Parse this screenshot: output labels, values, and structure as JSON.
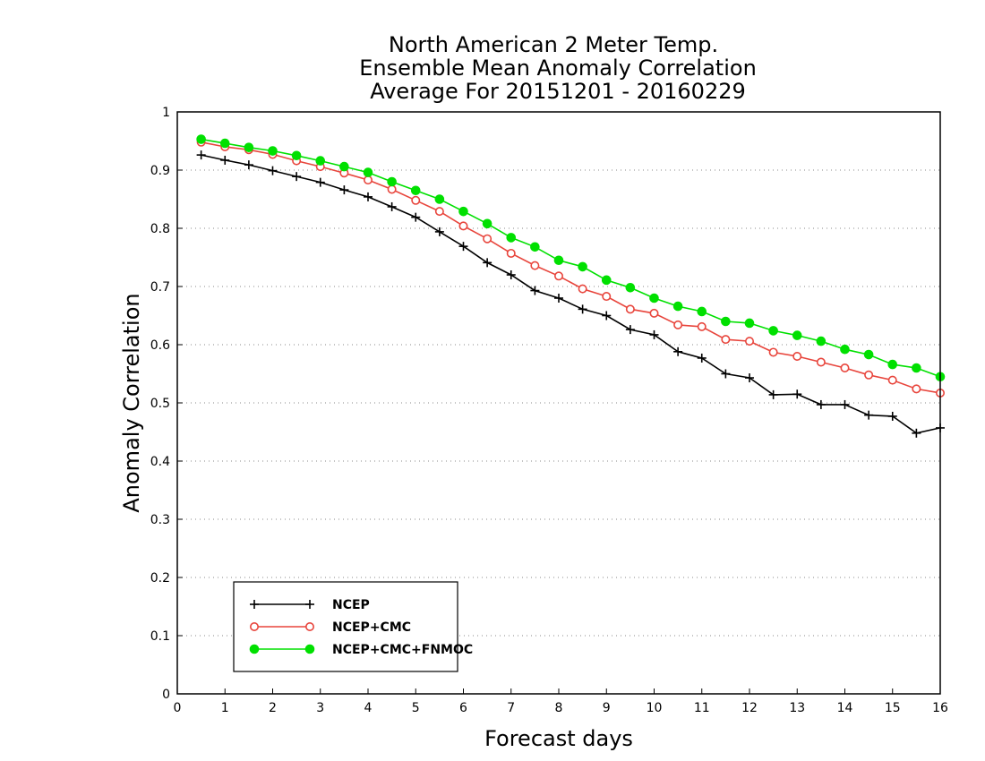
{
  "chart_data": {
    "type": "line",
    "title": [
      "North American 2 Meter Temp.",
      "Ensemble Mean Anomaly Correlation",
      "Average For 20151201 - 20160229"
    ],
    "xlabel": "Forecast days",
    "ylabel": "Anomaly Correlation",
    "xlim": [
      0,
      16
    ],
    "ylim": [
      0,
      1
    ],
    "xticks": [
      0,
      1,
      2,
      3,
      4,
      5,
      6,
      7,
      8,
      9,
      10,
      11,
      12,
      13,
      14,
      15,
      16
    ],
    "yticks": [
      0,
      0.1,
      0.2,
      0.3,
      0.4,
      0.5,
      0.6,
      0.7,
      0.8,
      0.9,
      1
    ],
    "ytick_labels": [
      "0",
      "0.1",
      "0.2",
      "0.3",
      "0.4",
      "0.5",
      "0.6",
      "0.7",
      "0.8",
      "0.9",
      "1"
    ],
    "grid": "horizontal dotted",
    "legend_position": "bottom-left",
    "x": [
      0.5,
      1.0,
      1.5,
      2.0,
      2.5,
      3.0,
      3.5,
      4.0,
      4.5,
      5.0,
      5.5,
      6.0,
      6.5,
      7.0,
      7.5,
      8.0,
      8.5,
      9.0,
      9.5,
      10.0,
      10.5,
      11.0,
      11.5,
      12.0,
      12.5,
      13.0,
      13.5,
      14.0,
      14.5,
      15.0,
      15.5,
      16.0
    ],
    "series": [
      {
        "name": "NCEP",
        "color": "#000000",
        "marker": "plus",
        "values": [
          0.926,
          0.917,
          0.909,
          0.899,
          0.889,
          0.879,
          0.866,
          0.854,
          0.837,
          0.819,
          0.794,
          0.769,
          0.741,
          0.72,
          0.693,
          0.68,
          0.661,
          0.65,
          0.626,
          0.617,
          0.588,
          0.577,
          0.55,
          0.543,
          0.514,
          0.515,
          0.497,
          0.497,
          0.479,
          0.477,
          0.448,
          0.457
        ]
      },
      {
        "name": "NCEP+CMC",
        "color": "#e8453c",
        "marker": "open-circle",
        "values": [
          0.948,
          0.94,
          0.935,
          0.927,
          0.916,
          0.906,
          0.895,
          0.883,
          0.867,
          0.848,
          0.829,
          0.804,
          0.782,
          0.757,
          0.736,
          0.718,
          0.696,
          0.683,
          0.661,
          0.654,
          0.634,
          0.631,
          0.609,
          0.606,
          0.587,
          0.58,
          0.57,
          0.56,
          0.548,
          0.539,
          0.524,
          0.517
        ]
      },
      {
        "name": "NCEP+CMC+FNMOC",
        "color": "#00e000",
        "marker": "filled-circle",
        "values": [
          0.953,
          0.946,
          0.939,
          0.933,
          0.925,
          0.916,
          0.906,
          0.896,
          0.88,
          0.865,
          0.85,
          0.829,
          0.808,
          0.784,
          0.768,
          0.745,
          0.734,
          0.711,
          0.698,
          0.68,
          0.666,
          0.657,
          0.64,
          0.637,
          0.624,
          0.616,
          0.606,
          0.592,
          0.583,
          0.566,
          0.56,
          0.545
        ]
      }
    ]
  }
}
